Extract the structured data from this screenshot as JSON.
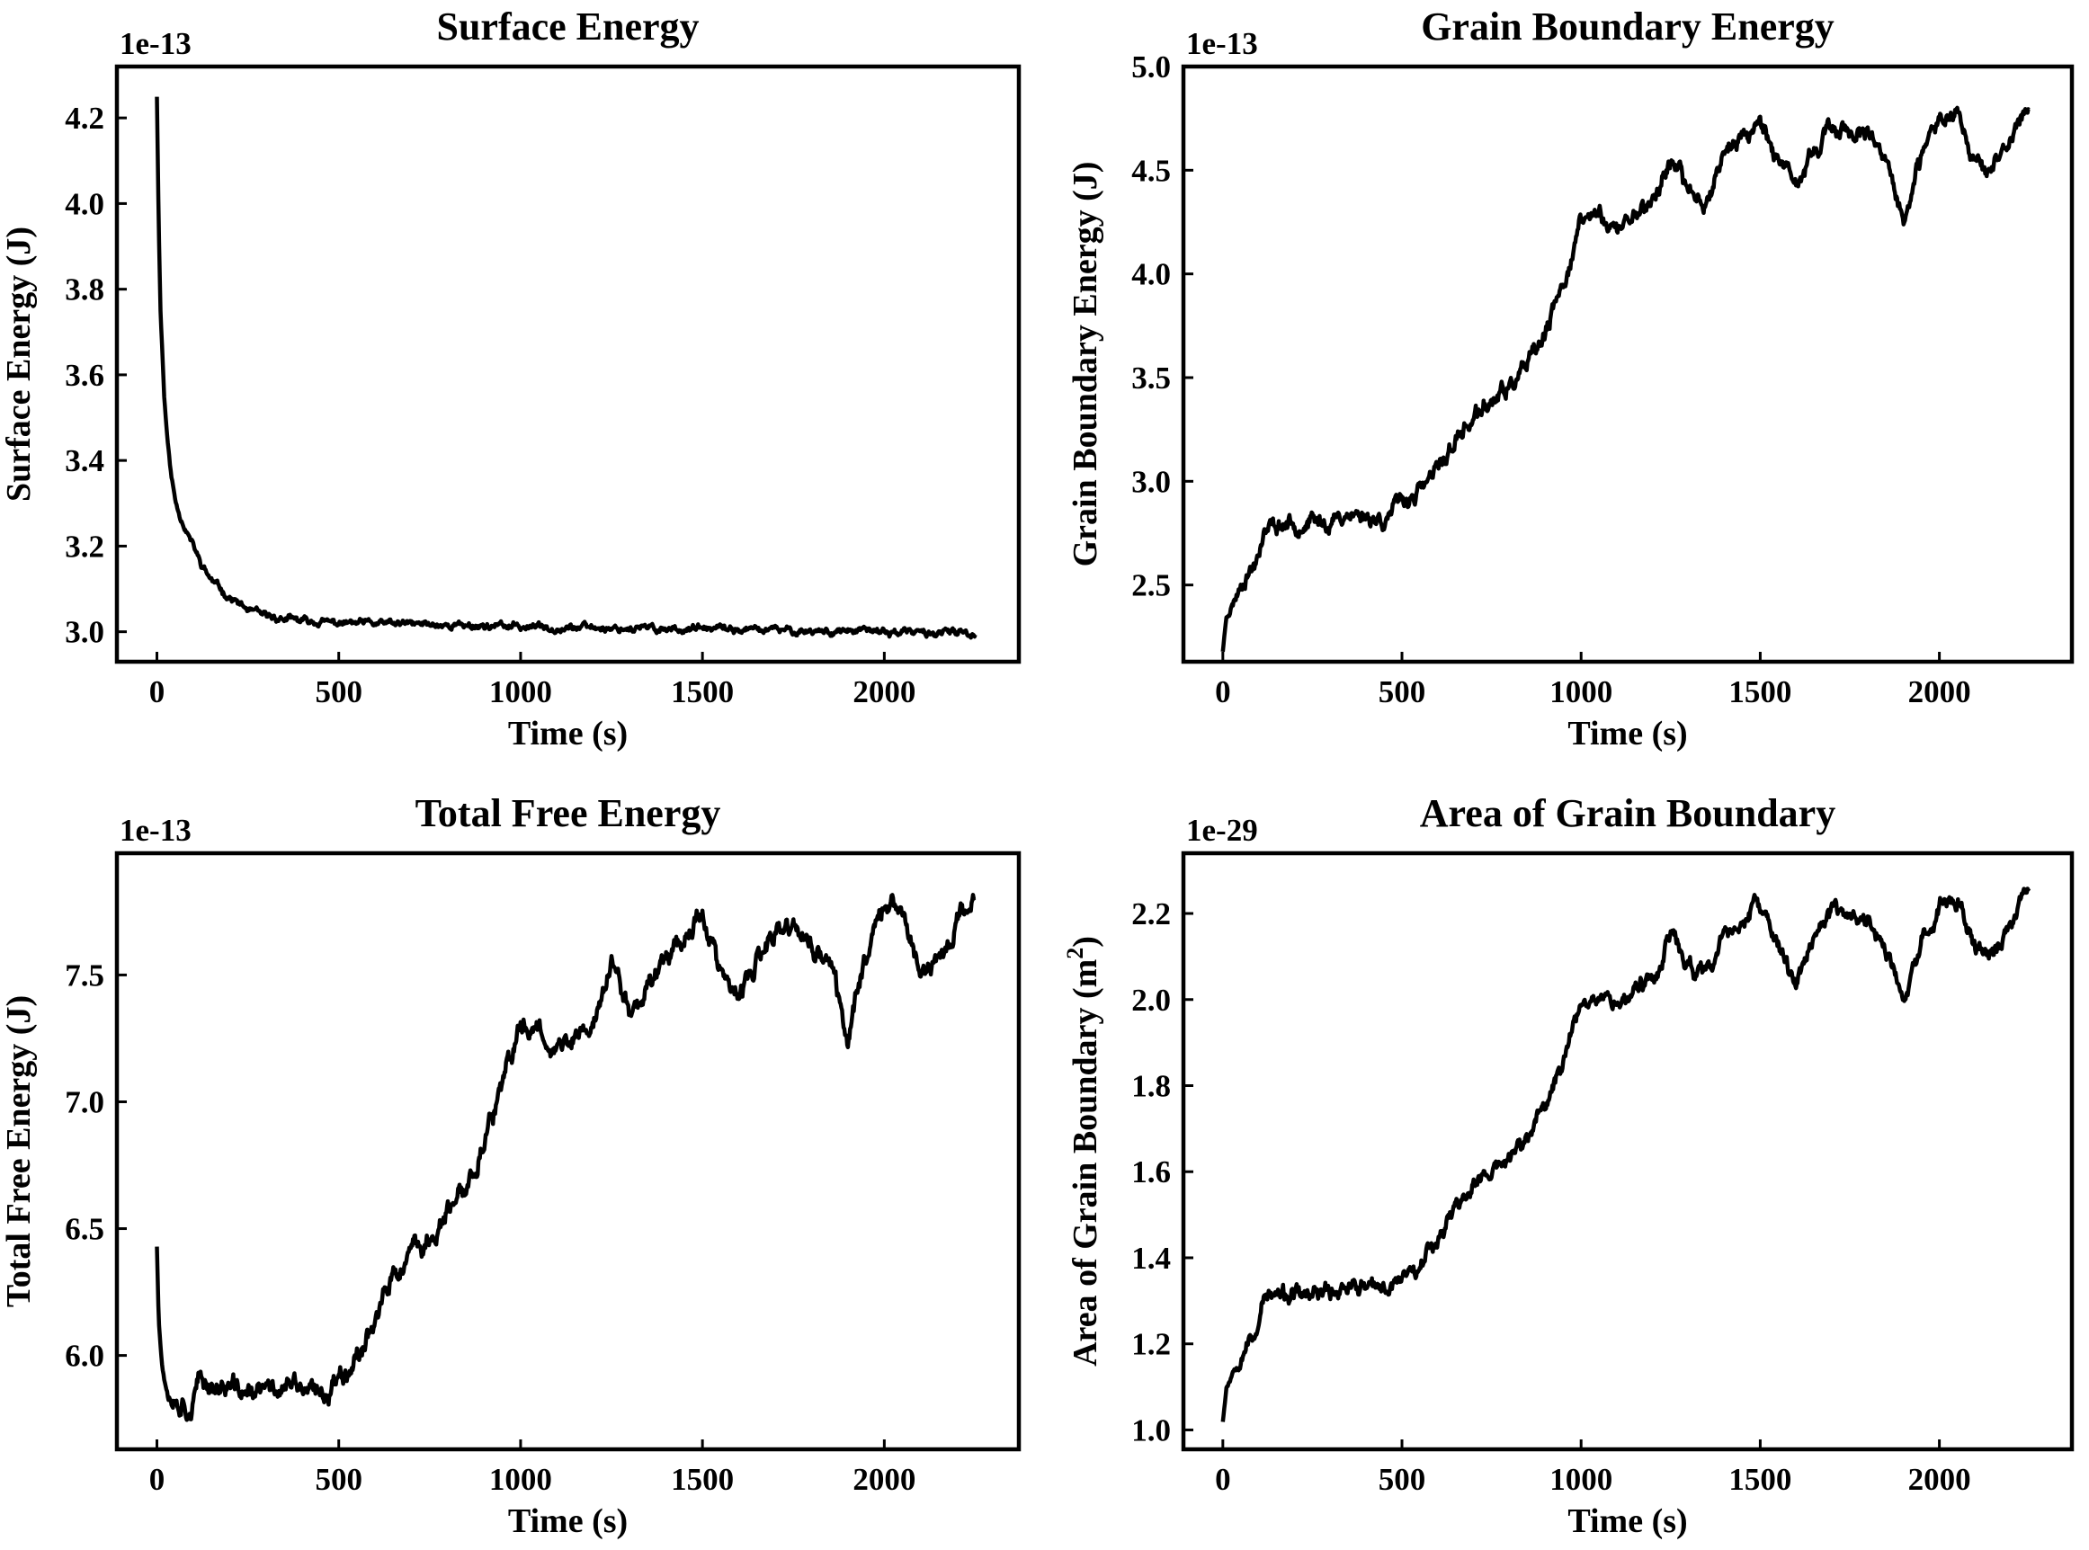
{
  "chart_data": [
    {
      "type": "line",
      "title": "Surface Energy",
      "xlabel": "Time (s)",
      "ylabel": "Surface Energy (J)",
      "offset_label": "1e-13",
      "xlim": [
        -110,
        2370
      ],
      "ylim": [
        2.93,
        4.32
      ],
      "xticks": [
        0,
        500,
        1000,
        1500,
        2000
      ],
      "yticks": [
        3.0,
        3.2,
        3.4,
        3.6,
        3.8,
        4.0,
        4.2
      ],
      "ytick_labels": [
        "3.0",
        "3.2",
        "3.4",
        "3.6",
        "3.8",
        "4.0",
        "4.2"
      ],
      "noise": 0.006,
      "seed": 11,
      "series": [
        {
          "x": [
            0,
            5,
            10,
            20,
            30,
            40,
            50,
            60,
            70,
            80,
            100,
            120,
            150,
            200,
            250,
            300,
            400,
            500,
            700,
            1000,
            1500,
            2000,
            2250
          ],
          "y": [
            4.25,
            3.95,
            3.75,
            3.55,
            3.44,
            3.36,
            3.31,
            3.28,
            3.26,
            3.24,
            3.2,
            3.16,
            3.12,
            3.08,
            3.05,
            3.035,
            3.025,
            3.02,
            3.018,
            3.012,
            3.006,
            3.0,
            2.995
          ]
        }
      ]
    },
    {
      "type": "line",
      "title": "Grain Boundary Energy",
      "xlabel": "Time (s)",
      "ylabel": "Grain Boundary Energy (J)",
      "offset_label": "1e-13",
      "xlim": [
        -110,
        2370
      ],
      "ylim": [
        2.13,
        5.0
      ],
      "xticks": [
        0,
        500,
        1000,
        1500,
        2000
      ],
      "yticks": [
        2.5,
        3.0,
        3.5,
        4.0,
        4.5,
        5.0
      ],
      "ytick_labels": [
        "2.5",
        "3.0",
        "3.5",
        "4.0",
        "4.5",
        "5.0"
      ],
      "noise": 0.03,
      "seed": 23,
      "series": [
        {
          "x": [
            0,
            10,
            30,
            60,
            90,
            110,
            130,
            180,
            250,
            300,
            350,
            400,
            450,
            500,
            550,
            600,
            650,
            700,
            750,
            800,
            850,
            900,
            950,
            1000,
            1050,
            1100,
            1150,
            1200,
            1250,
            1300,
            1350,
            1400,
            1450,
            1500,
            1550,
            1600,
            1650,
            1700,
            1750,
            1800,
            1850,
            1900,
            1950,
            2000,
            2050,
            2100,
            2150,
            2200,
            2250
          ],
          "y": [
            2.18,
            2.35,
            2.42,
            2.55,
            2.6,
            2.75,
            2.78,
            2.8,
            2.8,
            2.8,
            2.85,
            2.83,
            2.82,
            2.9,
            2.95,
            3.05,
            3.2,
            3.3,
            3.38,
            3.45,
            3.55,
            3.7,
            3.95,
            4.25,
            4.3,
            4.2,
            4.3,
            4.35,
            4.55,
            4.4,
            4.35,
            4.6,
            4.65,
            4.75,
            4.55,
            4.4,
            4.6,
            4.7,
            4.7,
            4.65,
            4.55,
            4.25,
            4.55,
            4.75,
            4.8,
            4.55,
            4.5,
            4.65,
            4.8
          ]
        }
      ]
    },
    {
      "type": "line",
      "title": "Total Free Energy",
      "xlabel": "Time (s)",
      "ylabel": "Total Free Energy (J)",
      "offset_label": "1e-13",
      "xlim": [
        -110,
        2370
      ],
      "ylim": [
        5.63,
        7.98
      ],
      "xticks": [
        0,
        500,
        1000,
        1500,
        2000
      ],
      "yticks": [
        6.0,
        6.5,
        7.0,
        7.5
      ],
      "ytick_labels": [
        "6.0",
        "6.5",
        "7.0",
        "7.5"
      ],
      "noise": 0.03,
      "seed": 37,
      "series": [
        {
          "x": [
            0,
            5,
            15,
            30,
            50,
            70,
            90,
            120,
            160,
            200,
            250,
            300,
            350,
            400,
            450,
            500,
            550,
            600,
            650,
            700,
            750,
            800,
            850,
            900,
            950,
            1000,
            1050,
            1100,
            1150,
            1200,
            1250,
            1300,
            1350,
            1400,
            1450,
            1500,
            1550,
            1600,
            1650,
            1700,
            1750,
            1800,
            1850,
            1900,
            1950,
            2000,
            2050,
            2100,
            2150,
            2200,
            2250
          ],
          "y": [
            6.43,
            6.15,
            5.95,
            5.86,
            5.83,
            5.82,
            5.79,
            5.9,
            5.88,
            5.87,
            5.85,
            5.86,
            5.88,
            5.87,
            5.83,
            5.92,
            6.0,
            6.15,
            6.3,
            6.4,
            6.45,
            6.55,
            6.65,
            6.85,
            7.05,
            7.3,
            7.3,
            7.2,
            7.25,
            7.3,
            7.55,
            7.35,
            7.45,
            7.6,
            7.65,
            7.75,
            7.5,
            7.4,
            7.55,
            7.65,
            7.7,
            7.6,
            7.55,
            7.25,
            7.6,
            7.8,
            7.75,
            7.5,
            7.55,
            7.7,
            7.82
          ]
        }
      ]
    },
    {
      "type": "line",
      "title": "Area of Grain Boundary",
      "xlabel": "Time (s)",
      "ylabel": "Area of Grain Boundary (m",
      "ylabel_sup": "2",
      "ylabel_end": ")",
      "offset_label": "1e-29",
      "xlim": [
        -110,
        2370
      ],
      "ylim": [
        0.955,
        2.34
      ],
      "xticks": [
        0,
        500,
        1000,
        1500,
        2000
      ],
      "yticks": [
        1.0,
        1.2,
        1.4,
        1.6,
        1.8,
        2.0,
        2.2
      ],
      "ytick_labels": [
        "1.0",
        "1.2",
        "1.4",
        "1.6",
        "1.8",
        "2.0",
        "2.2"
      ],
      "noise": 0.014,
      "seed": 53,
      "series": [
        {
          "x": [
            0,
            10,
            30,
            60,
            90,
            110,
            130,
            180,
            250,
            300,
            350,
            400,
            450,
            500,
            550,
            600,
            650,
            700,
            750,
            800,
            850,
            900,
            950,
            1000,
            1050,
            1100,
            1150,
            1200,
            1250,
            1300,
            1350,
            1400,
            1450,
            1500,
            1550,
            1600,
            1650,
            1700,
            1750,
            1800,
            1850,
            1900,
            1950,
            2000,
            2050,
            2100,
            2150,
            2200,
            2250
          ],
          "y": [
            1.02,
            1.1,
            1.14,
            1.2,
            1.22,
            1.3,
            1.31,
            1.31,
            1.31,
            1.32,
            1.34,
            1.33,
            1.32,
            1.36,
            1.39,
            1.45,
            1.52,
            1.57,
            1.6,
            1.63,
            1.68,
            1.75,
            1.86,
            2.0,
            2.02,
            1.99,
            2.02,
            2.05,
            2.15,
            2.08,
            2.05,
            2.15,
            2.18,
            2.22,
            2.12,
            2.04,
            2.15,
            2.2,
            2.2,
            2.18,
            2.12,
            1.99,
            2.12,
            2.22,
            2.24,
            2.12,
            2.1,
            2.18,
            2.26
          ]
        }
      ]
    }
  ]
}
